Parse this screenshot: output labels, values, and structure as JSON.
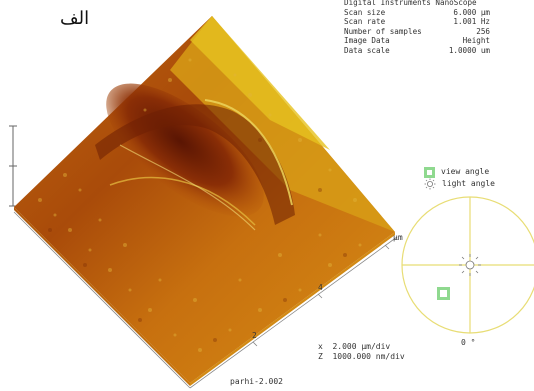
{
  "header": {
    "label": "الف"
  },
  "scan_params": [
    {
      "key": "Digital Instruments NanoScope",
      "value": ""
    },
    {
      "key": "Scan size",
      "value": "6.000 µm"
    },
    {
      "key": "Scan rate",
      "value": "1.001 Hz"
    },
    {
      "key": "Number of samples",
      "value": "256"
    },
    {
      "key": "Image Data",
      "value": "Height"
    },
    {
      "key": "Data scale",
      "value": "1.0000 um"
    }
  ],
  "legend": {
    "view_angle": "view angle",
    "light_angle": "light angle",
    "view_icon": "square-icon",
    "light_icon": "sun-icon"
  },
  "angle_dial": {
    "zero_label": "0 °"
  },
  "axis": {
    "unit": "µm",
    "tick_4": "4",
    "tick_2": "2"
  },
  "scale_info": {
    "x": "x  2.000 µm/div",
    "z": "Z  1000.000 nm/div"
  },
  "footer": {
    "name": "parhi-2.002"
  },
  "colors": {
    "surface_dark": "#6a1d05",
    "surface_mid": "#b8580c",
    "surface_light": "#e8c020",
    "dial": "#e8dd75",
    "view_marker": "#8fd98f"
  }
}
